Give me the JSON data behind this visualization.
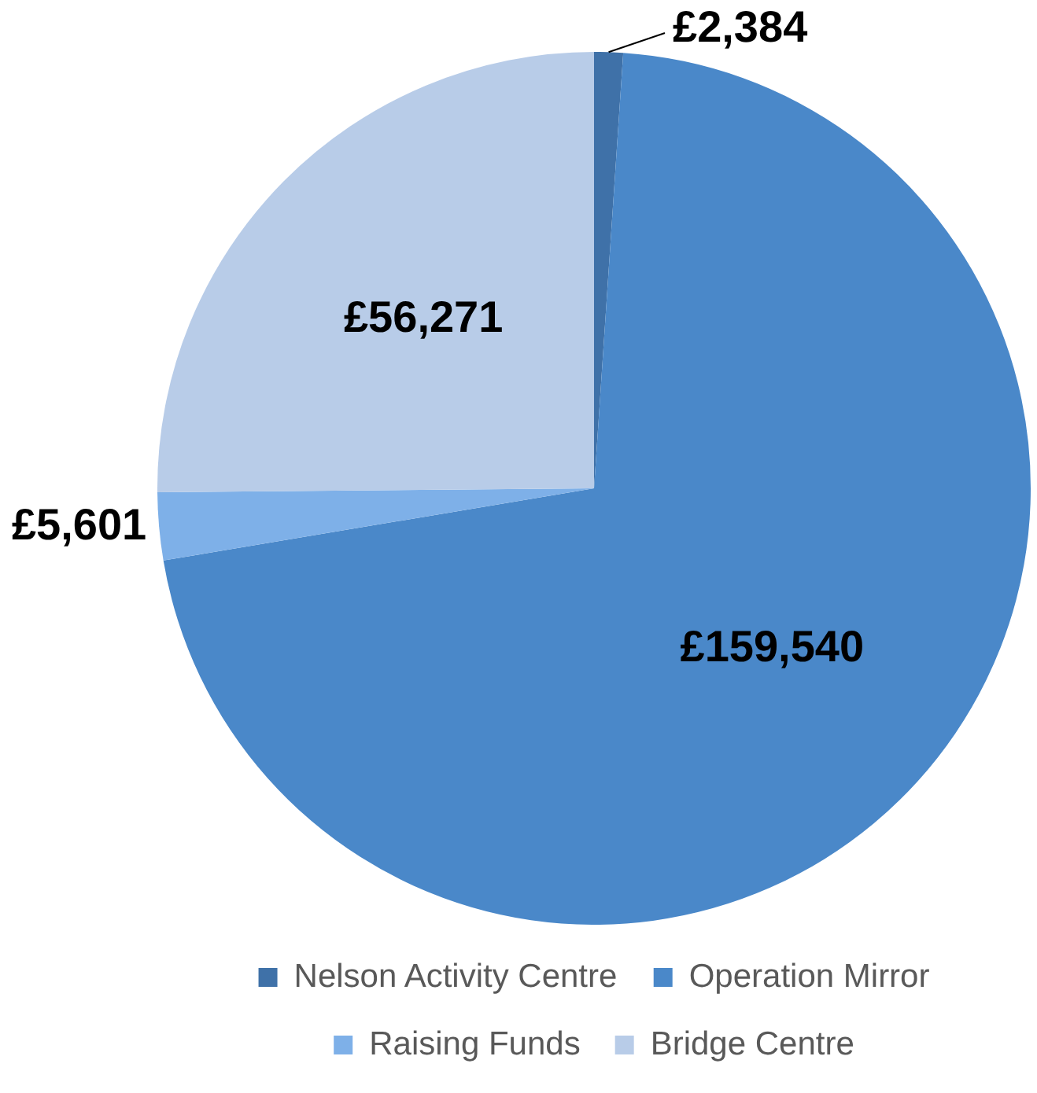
{
  "chart_data": {
    "type": "pie",
    "categories": [
      "Nelson Activity Centre",
      "Operation Mirror",
      "Raising Funds",
      "Bridge Centre"
    ],
    "values": [
      2384,
      159540,
      5601,
      56271
    ],
    "value_labels": [
      "£2,384",
      "£159,540",
      "£5,601",
      "£56,271"
    ],
    "colors": [
      "#3f71a8",
      "#4a88c9",
      "#7eb0e8",
      "#b8cce8"
    ],
    "legend": "bottom"
  }
}
